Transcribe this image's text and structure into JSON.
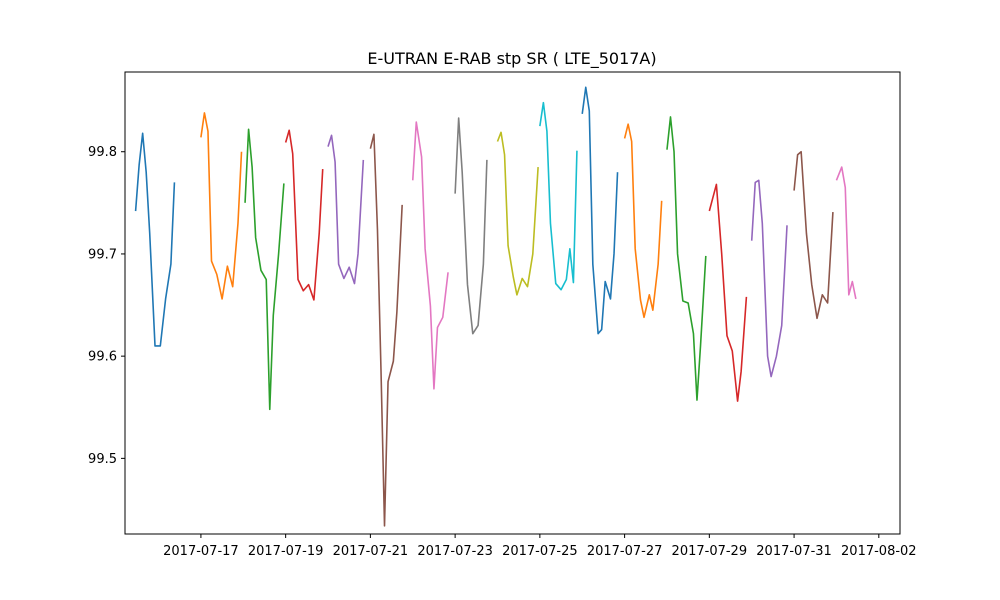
{
  "chart_data": {
    "type": "line",
    "title": "E-UTRAN E-RAB stp SR ( LTE_5017A)",
    "xlabel": "",
    "ylabel": "",
    "x_ticks": [
      "2017-07-17",
      "2017-07-19",
      "2017-07-21",
      "2017-07-23",
      "2017-07-25",
      "2017-07-27",
      "2017-07-29",
      "2017-07-31",
      "2017-08-02"
    ],
    "y_ticks": [
      99.5,
      99.6,
      99.7,
      99.8
    ],
    "xlim": [
      "2017-07-15 05:00",
      "2017-08-02 12:00"
    ],
    "ylim": [
      99.426,
      99.878
    ],
    "grid": false,
    "legend": "none",
    "series": [
      {
        "color": "#1f77b4",
        "points": [
          [
            "2017-07-15 11:00",
            99.742
          ],
          [
            "2017-07-15 13:00",
            99.787
          ],
          [
            "2017-07-15 15:00",
            99.818
          ],
          [
            "2017-07-15 17:00",
            99.78
          ],
          [
            "2017-07-15 19:00",
            99.72
          ],
          [
            "2017-07-15 22:00",
            99.61
          ],
          [
            "2017-07-16 01:00",
            99.61
          ],
          [
            "2017-07-16 04:00",
            99.656
          ],
          [
            "2017-07-16 07:00",
            99.69
          ],
          [
            "2017-07-16 09:00",
            99.77
          ]
        ]
      },
      {
        "color": "#ff7f0e",
        "points": [
          [
            "2017-07-17 00:00",
            99.814
          ],
          [
            "2017-07-17 02:00",
            99.838
          ],
          [
            "2017-07-17 04:00",
            99.82
          ],
          [
            "2017-07-17 06:00",
            99.693
          ],
          [
            "2017-07-17 09:00",
            99.68
          ],
          [
            "2017-07-17 12:00",
            99.656
          ],
          [
            "2017-07-17 15:00",
            99.688
          ],
          [
            "2017-07-17 18:00",
            99.668
          ],
          [
            "2017-07-17 21:00",
            99.73
          ],
          [
            "2017-07-17 23:00",
            99.8
          ]
        ]
      },
      {
        "color": "#2ca02c",
        "points": [
          [
            "2017-07-18 01:00",
            99.75
          ],
          [
            "2017-07-18 03:00",
            99.822
          ],
          [
            "2017-07-18 05:00",
            99.785
          ],
          [
            "2017-07-18 07:00",
            99.716
          ],
          [
            "2017-07-18 10:00",
            99.684
          ],
          [
            "2017-07-18 13:00",
            99.675
          ],
          [
            "2017-07-18 15:00",
            99.548
          ],
          [
            "2017-07-18 17:00",
            99.64
          ],
          [
            "2017-07-18 20:00",
            99.7
          ],
          [
            "2017-07-18 23:00",
            99.769
          ]
        ]
      },
      {
        "color": "#d62728",
        "points": [
          [
            "2017-07-19 00:00",
            99.809
          ],
          [
            "2017-07-19 02:00",
            99.821
          ],
          [
            "2017-07-19 04:00",
            99.798
          ],
          [
            "2017-07-19 07:00",
            99.675
          ],
          [
            "2017-07-19 10:00",
            99.664
          ],
          [
            "2017-07-19 13:00",
            99.67
          ],
          [
            "2017-07-19 16:00",
            99.655
          ],
          [
            "2017-07-19 19:00",
            99.72
          ],
          [
            "2017-07-19 21:00",
            99.783
          ]
        ]
      },
      {
        "color": "#9467bd",
        "points": [
          [
            "2017-07-20 00:00",
            99.805
          ],
          [
            "2017-07-20 02:00",
            99.816
          ],
          [
            "2017-07-20 04:00",
            99.79
          ],
          [
            "2017-07-20 06:00",
            99.69
          ],
          [
            "2017-07-20 09:00",
            99.676
          ],
          [
            "2017-07-20 12:00",
            99.687
          ],
          [
            "2017-07-20 15:00",
            99.671
          ],
          [
            "2017-07-20 17:00",
            99.7
          ],
          [
            "2017-07-20 20:00",
            99.792
          ]
        ]
      },
      {
        "color": "#8c564b",
        "points": [
          [
            "2017-07-21 00:00",
            99.803
          ],
          [
            "2017-07-21 02:00",
            99.817
          ],
          [
            "2017-07-21 04:00",
            99.724
          ],
          [
            "2017-07-21 06:00",
            99.587
          ],
          [
            "2017-07-21 08:00",
            99.434
          ],
          [
            "2017-07-21 10:00",
            99.575
          ],
          [
            "2017-07-21 13:00",
            99.595
          ],
          [
            "2017-07-21 15:00",
            99.643
          ],
          [
            "2017-07-21 18:00",
            99.748
          ]
        ]
      },
      {
        "color": "#e377c2",
        "points": [
          [
            "2017-07-22 00:00",
            99.772
          ],
          [
            "2017-07-22 02:00",
            99.829
          ],
          [
            "2017-07-22 05:00",
            99.795
          ],
          [
            "2017-07-22 07:00",
            99.705
          ],
          [
            "2017-07-22 10:00",
            99.649
          ],
          [
            "2017-07-22 12:00",
            99.568
          ],
          [
            "2017-07-22 14:00",
            99.628
          ],
          [
            "2017-07-22 17:00",
            99.638
          ],
          [
            "2017-07-22 20:00",
            99.682
          ]
        ]
      },
      {
        "color": "#7f7f7f",
        "points": [
          [
            "2017-07-23 00:00",
            99.759
          ],
          [
            "2017-07-23 02:00",
            99.833
          ],
          [
            "2017-07-23 04:00",
            99.78
          ],
          [
            "2017-07-23 07:00",
            99.67
          ],
          [
            "2017-07-23 10:00",
            99.622
          ],
          [
            "2017-07-23 13:00",
            99.63
          ],
          [
            "2017-07-23 16:00",
            99.69
          ],
          [
            "2017-07-23 18:00",
            99.792
          ]
        ]
      },
      {
        "color": "#bcbd22",
        "points": [
          [
            "2017-07-24 00:00",
            99.81
          ],
          [
            "2017-07-24 02:00",
            99.819
          ],
          [
            "2017-07-24 04:00",
            99.797
          ],
          [
            "2017-07-24 06:00",
            99.708
          ],
          [
            "2017-07-24 09:00",
            99.677
          ],
          [
            "2017-07-24 11:00",
            99.66
          ],
          [
            "2017-07-24 14:00",
            99.676
          ],
          [
            "2017-07-24 17:00",
            99.668
          ],
          [
            "2017-07-24 20:00",
            99.7
          ],
          [
            "2017-07-24 23:00",
            99.785
          ]
        ]
      },
      {
        "color": "#17becf",
        "points": [
          [
            "2017-07-25 00:00",
            99.825
          ],
          [
            "2017-07-25 02:00",
            99.848
          ],
          [
            "2017-07-25 04:00",
            99.82
          ],
          [
            "2017-07-25 06:00",
            99.73
          ],
          [
            "2017-07-25 09:00",
            99.671
          ],
          [
            "2017-07-25 12:00",
            99.665
          ],
          [
            "2017-07-25 15:00",
            99.675
          ],
          [
            "2017-07-25 17:00",
            99.705
          ],
          [
            "2017-07-25 19:00",
            99.672
          ],
          [
            "2017-07-25 21:00",
            99.801
          ]
        ]
      },
      {
        "color": "#1f77b4",
        "points": [
          [
            "2017-07-26 00:00",
            99.837
          ],
          [
            "2017-07-26 02:00",
            99.863
          ],
          [
            "2017-07-26 04:00",
            99.84
          ],
          [
            "2017-07-26 06:00",
            99.69
          ],
          [
            "2017-07-26 09:00",
            99.622
          ],
          [
            "2017-07-26 11:00",
            99.626
          ],
          [
            "2017-07-26 13:00",
            99.673
          ],
          [
            "2017-07-26 16:00",
            99.656
          ],
          [
            "2017-07-26 18:00",
            99.7
          ],
          [
            "2017-07-26 20:00",
            99.78
          ]
        ]
      },
      {
        "color": "#ff7f0e",
        "points": [
          [
            "2017-07-27 00:00",
            99.813
          ],
          [
            "2017-07-27 02:00",
            99.827
          ],
          [
            "2017-07-27 04:00",
            99.81
          ],
          [
            "2017-07-27 06:00",
            99.705
          ],
          [
            "2017-07-27 09:00",
            99.655
          ],
          [
            "2017-07-27 11:00",
            99.638
          ],
          [
            "2017-07-27 14:00",
            99.66
          ],
          [
            "2017-07-27 16:00",
            99.645
          ],
          [
            "2017-07-27 19:00",
            99.69
          ],
          [
            "2017-07-27 21:00",
            99.752
          ]
        ]
      },
      {
        "color": "#2ca02c",
        "points": [
          [
            "2017-07-28 00:00",
            99.802
          ],
          [
            "2017-07-28 02:00",
            99.834
          ],
          [
            "2017-07-28 04:00",
            99.8
          ],
          [
            "2017-07-28 06:00",
            99.7
          ],
          [
            "2017-07-28 09:00",
            99.654
          ],
          [
            "2017-07-28 12:00",
            99.652
          ],
          [
            "2017-07-28 15:00",
            99.622
          ],
          [
            "2017-07-28 17:00",
            99.557
          ],
          [
            "2017-07-28 19:00",
            99.61
          ],
          [
            "2017-07-28 22:00",
            99.698
          ]
        ]
      },
      {
        "color": "#d62728",
        "points": [
          [
            "2017-07-29 00:00",
            99.742
          ],
          [
            "2017-07-29 02:00",
            99.755
          ],
          [
            "2017-07-29 04:00",
            99.768
          ],
          [
            "2017-07-29 07:00",
            99.7
          ],
          [
            "2017-07-29 10:00",
            99.62
          ],
          [
            "2017-07-29 13:00",
            99.605
          ],
          [
            "2017-07-29 16:00",
            99.556
          ],
          [
            "2017-07-29 18:00",
            99.585
          ],
          [
            "2017-07-29 21:00",
            99.658
          ]
        ]
      },
      {
        "color": "#9467bd",
        "points": [
          [
            "2017-07-30 00:00",
            99.713
          ],
          [
            "2017-07-30 02:00",
            99.77
          ],
          [
            "2017-07-30 04:00",
            99.772
          ],
          [
            "2017-07-30 06:00",
            99.73
          ],
          [
            "2017-07-30 09:00",
            99.6
          ],
          [
            "2017-07-30 11:00",
            99.58
          ],
          [
            "2017-07-30 14:00",
            99.6
          ],
          [
            "2017-07-30 17:00",
            99.63
          ],
          [
            "2017-07-30 20:00",
            99.728
          ]
        ]
      },
      {
        "color": "#8c564b",
        "points": [
          [
            "2017-07-31 00:00",
            99.762
          ],
          [
            "2017-07-31 02:00",
            99.797
          ],
          [
            "2017-07-31 04:00",
            99.8
          ],
          [
            "2017-07-31 07:00",
            99.72
          ],
          [
            "2017-07-31 10:00",
            99.67
          ],
          [
            "2017-07-31 13:00",
            99.637
          ],
          [
            "2017-07-31 16:00",
            99.66
          ],
          [
            "2017-07-31 19:00",
            99.652
          ],
          [
            "2017-07-31 22:00",
            99.741
          ]
        ]
      },
      {
        "color": "#e377c2",
        "points": [
          [
            "2017-08-01 00:00",
            99.772
          ],
          [
            "2017-08-01 03:00",
            99.785
          ],
          [
            "2017-08-01 05:00",
            99.765
          ],
          [
            "2017-08-01 07:00",
            99.66
          ],
          [
            "2017-08-01 09:00",
            99.673
          ],
          [
            "2017-08-01 11:00",
            99.656
          ]
        ]
      }
    ]
  }
}
